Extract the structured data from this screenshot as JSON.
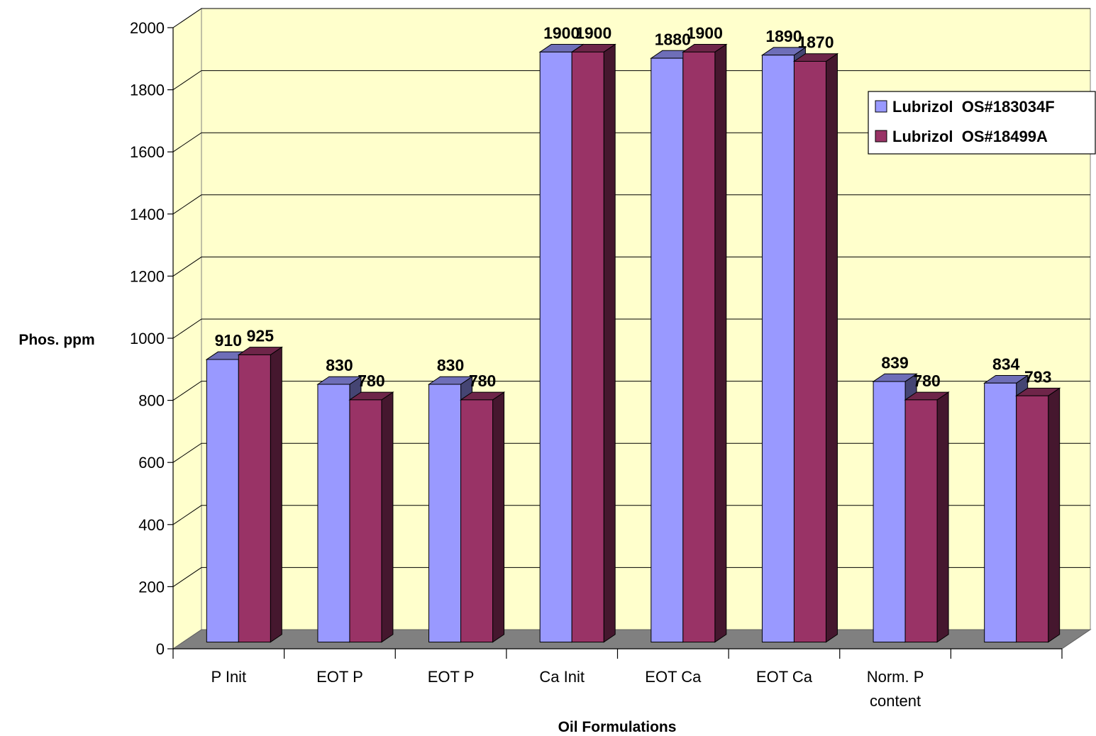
{
  "chart_data": {
    "type": "bar",
    "title": "",
    "xlabel": "Oil Formulations",
    "ylabel": "Phos. ppm",
    "ylim": [
      0,
      2000
    ],
    "yticks": [
      0,
      200,
      400,
      600,
      800,
      1000,
      1200,
      1400,
      1600,
      1800,
      2000
    ],
    "grid": true,
    "legend_position": "right",
    "categories": [
      "P Init",
      "EOT P",
      "EOT P",
      "Ca Init",
      "EOT Ca",
      "EOT Ca",
      "Norm. P content",
      ""
    ],
    "series": [
      {
        "name": "Lubrizol  OS#183034F",
        "color": "#9999ff",
        "values": [
          910,
          830,
          830,
          1900,
          1880,
          1890,
          839,
          834
        ]
      },
      {
        "name": "Lubrizol  OS#18499A",
        "color": "#993366",
        "values": [
          925,
          780,
          780,
          1900,
          1900,
          1870,
          780,
          793
        ]
      }
    ],
    "wall_color": "#ffffcc",
    "floor_color": "#808080"
  }
}
